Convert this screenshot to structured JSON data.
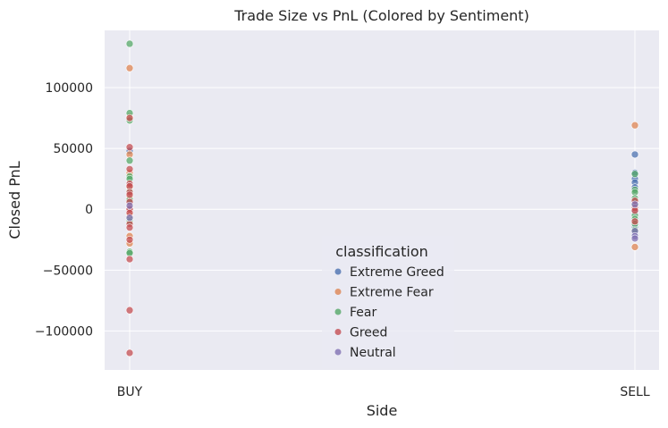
{
  "chart_data": {
    "type": "scatter",
    "title": "Trade Size vs PnL (Colored by Sentiment)",
    "xlabel": "Side",
    "ylabel": "Closed PnL",
    "categories": [
      "BUY",
      "SELL"
    ],
    "ylim": [
      -132000,
      147000
    ],
    "yticks": [
      100000,
      50000,
      0,
      -50000,
      -100000
    ],
    "ytick_labels": [
      "100000",
      "50000",
      "0",
      "−50000",
      "−100000"
    ],
    "grid": true,
    "legend": {
      "title": "classification",
      "placement": "lower-center"
    },
    "series": [
      {
        "name": "Extreme Greed",
        "color": "#4c72b0",
        "points": [
          {
            "x": "BUY",
            "y": 48000
          },
          {
            "x": "BUY",
            "y": 20000
          },
          {
            "x": "BUY",
            "y": 5000
          },
          {
            "x": "SELL",
            "y": 45000
          },
          {
            "x": "SELL",
            "y": 30000
          },
          {
            "x": "SELL",
            "y": 25000
          },
          {
            "x": "SELL",
            "y": 22000
          },
          {
            "x": "SELL",
            "y": 18000
          },
          {
            "x": "SELL",
            "y": 5000
          },
          {
            "x": "SELL",
            "y": -2000
          },
          {
            "x": "SELL",
            "y": -15000
          },
          {
            "x": "SELL",
            "y": -20000
          }
        ]
      },
      {
        "name": "Extreme Fear",
        "color": "#dd8452",
        "points": [
          {
            "x": "BUY",
            "y": 116000
          },
          {
            "x": "BUY",
            "y": 76000
          },
          {
            "x": "BUY",
            "y": 45000
          },
          {
            "x": "BUY",
            "y": 30000
          },
          {
            "x": "BUY",
            "y": 18000
          },
          {
            "x": "BUY",
            "y": 10000
          },
          {
            "x": "BUY",
            "y": 3000
          },
          {
            "x": "BUY",
            "y": -5000
          },
          {
            "x": "BUY",
            "y": -22000
          },
          {
            "x": "BUY",
            "y": -28000
          },
          {
            "x": "SELL",
            "y": 69000
          },
          {
            "x": "SELL",
            "y": 2000
          },
          {
            "x": "SELL",
            "y": -31000
          }
        ]
      },
      {
        "name": "Fear",
        "color": "#55a868",
        "points": [
          {
            "x": "BUY",
            "y": 136000
          },
          {
            "x": "BUY",
            "y": 79000
          },
          {
            "x": "BUY",
            "y": 73000
          },
          {
            "x": "BUY",
            "y": 40000
          },
          {
            "x": "BUY",
            "y": 27000
          },
          {
            "x": "BUY",
            "y": 25000
          },
          {
            "x": "BUY",
            "y": 15000
          },
          {
            "x": "BUY",
            "y": 8000
          },
          {
            "x": "BUY",
            "y": 2000
          },
          {
            "x": "BUY",
            "y": -8000
          },
          {
            "x": "BUY",
            "y": -10000
          },
          {
            "x": "BUY",
            "y": -35000
          },
          {
            "x": "BUY",
            "y": -36000
          },
          {
            "x": "SELL",
            "y": 29000
          },
          {
            "x": "SELL",
            "y": 16000
          },
          {
            "x": "SELL",
            "y": 14000
          },
          {
            "x": "SELL",
            "y": 9000
          },
          {
            "x": "SELL",
            "y": 3000
          },
          {
            "x": "SELL",
            "y": -5000
          },
          {
            "x": "SELL",
            "y": -8000
          },
          {
            "x": "SELL",
            "y": -12000
          },
          {
            "x": "SELL",
            "y": -17000
          }
        ]
      },
      {
        "name": "Greed",
        "color": "#c44e52",
        "points": [
          {
            "x": "BUY",
            "y": 75000
          },
          {
            "x": "BUY",
            "y": 51000
          },
          {
            "x": "BUY",
            "y": 33000
          },
          {
            "x": "BUY",
            "y": 21000
          },
          {
            "x": "BUY",
            "y": 19000
          },
          {
            "x": "BUY",
            "y": 14000
          },
          {
            "x": "BUY",
            "y": 12000
          },
          {
            "x": "BUY",
            "y": 6000
          },
          {
            "x": "BUY",
            "y": 1000
          },
          {
            "x": "BUY",
            "y": 0
          },
          {
            "x": "BUY",
            "y": -3000
          },
          {
            "x": "BUY",
            "y": -12000
          },
          {
            "x": "BUY",
            "y": -15000
          },
          {
            "x": "BUY",
            "y": -25000
          },
          {
            "x": "BUY",
            "y": -41000
          },
          {
            "x": "BUY",
            "y": -83000
          },
          {
            "x": "BUY",
            "y": -118000
          },
          {
            "x": "SELL",
            "y": 7000
          },
          {
            "x": "SELL",
            "y": 1000
          },
          {
            "x": "SELL",
            "y": -1000
          },
          {
            "x": "SELL",
            "y": -10000
          }
        ]
      },
      {
        "name": "Neutral",
        "color": "#8172b3",
        "points": [
          {
            "x": "BUY",
            "y": 3000
          },
          {
            "x": "BUY",
            "y": -7000
          },
          {
            "x": "SELL",
            "y": 4000
          },
          {
            "x": "SELL",
            "y": -18000
          },
          {
            "x": "SELL",
            "y": -22000
          },
          {
            "x": "SELL",
            "y": -24000
          }
        ]
      }
    ]
  }
}
